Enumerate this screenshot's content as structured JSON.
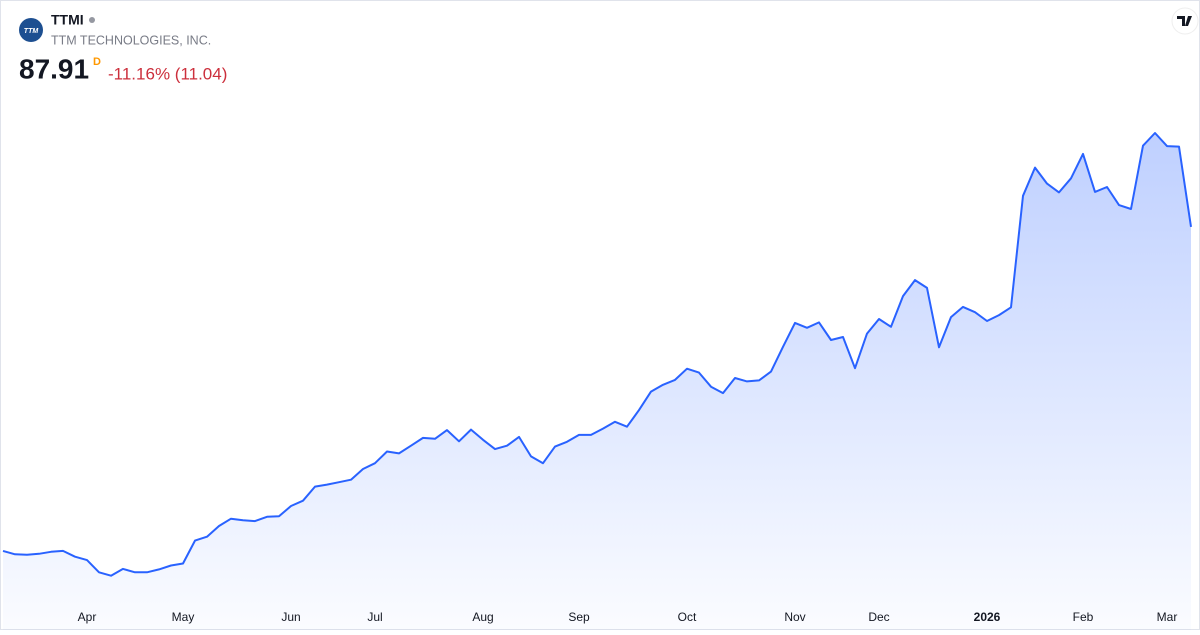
{
  "header": {
    "logo_text": "TTM",
    "ticker": "TTMI",
    "company": "TTM TECHNOLOGIES, INC.",
    "price": "87.91",
    "interval": "D",
    "change": "-11.16% (11.04)"
  },
  "chart_data": {
    "type": "area",
    "color": "#2962ff",
    "categories": [
      null,
      null,
      null,
      null,
      null,
      null,
      null,
      "Apr",
      null,
      null,
      null,
      null,
      null,
      null,
      null,
      "May",
      null,
      null,
      null,
      null,
      null,
      null,
      null,
      null,
      "Jun",
      null,
      null,
      null,
      null,
      null,
      null,
      "Jul",
      null,
      null,
      null,
      null,
      null,
      null,
      null,
      null,
      "Aug",
      null,
      null,
      null,
      null,
      null,
      null,
      null,
      "Sep",
      null,
      null,
      null,
      null,
      null,
      null,
      null,
      null,
      "Oct",
      null,
      null,
      null,
      null,
      null,
      null,
      null,
      null,
      "Nov",
      null,
      null,
      null,
      null,
      null,
      null,
      "Dec",
      null,
      null,
      null,
      null,
      null,
      null,
      null,
      null,
      "2026",
      null,
      null,
      null,
      null,
      null,
      null,
      null,
      "Feb",
      null,
      null,
      null,
      null,
      null,
      null,
      "Mar",
      null,
      null
    ],
    "values": [
      21.4,
      20.7,
      20.6,
      20.8,
      21.2,
      21.4,
      20.2,
      19.5,
      17.0,
      16.3,
      17.7,
      17.0,
      17.0,
      17.6,
      18.4,
      18.8,
      23.5,
      24.3,
      26.5,
      28.0,
      27.7,
      27.5,
      28.4,
      28.5,
      30.6,
      31.7,
      34.6,
      35.0,
      35.5,
      36.0,
      38.2,
      39.4,
      41.8,
      41.4,
      43.0,
      44.6,
      44.4,
      46.2,
      43.9,
      46.3,
      44.2,
      42.3,
      43.0,
      44.8,
      40.8,
      39.4,
      42.8,
      43.8,
      45.2,
      45.2,
      46.5,
      47.9,
      46.9,
      50.3,
      54.1,
      55.5,
      56.5,
      58.8,
      58.0,
      55.1,
      53.8,
      56.9,
      56.2,
      56.4,
      58.2,
      63.3,
      68.2,
      67.2,
      68.3,
      64.7,
      65.3,
      58.9,
      66.0,
      69.0,
      67.4,
      73.7,
      77.0,
      75.4,
      63.2,
      69.4,
      71.5,
      70.4,
      68.6,
      69.8,
      71.4,
      94.3,
      100.1,
      96.8,
      95.0,
      97.9,
      102.9,
      95.1,
      96.1,
      92.4,
      91.6,
      104.6,
      107.2,
      104.5,
      104.4,
      87.91
    ],
    "ylim": [
      11,
      115
    ]
  }
}
